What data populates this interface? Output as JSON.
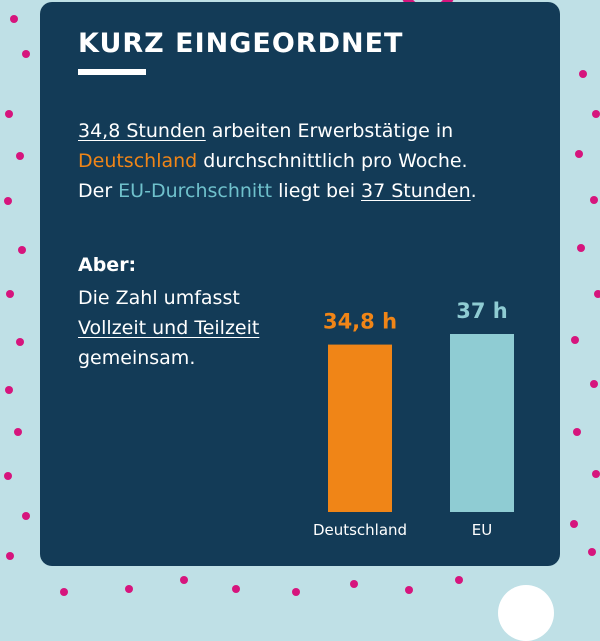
{
  "card": {
    "title": "KURZ EINGEORDNET",
    "intro": {
      "l1_a": "34,8 Stunden",
      "l1_b": " arbeiten Erwerbstätige in",
      "l2_a": "Deutschland",
      "l2_b": " durchschnittlich pro Woche.",
      "l3_a": "Der ",
      "l3_b": "EU-Durchschnitt",
      "l3_c": " liegt bei ",
      "l3_d": "37 Stunden",
      "l3_e": "."
    },
    "aber": {
      "heading": "Aber:",
      "l1": "Die Zahl umfasst",
      "l2": "Vollzeit und Teilzeit",
      "l3": "gemeinsam."
    }
  },
  "chart_data": {
    "type": "bar",
    "categories": [
      "Deutschland",
      "EU"
    ],
    "values": [
      34.8,
      37
    ],
    "value_labels": [
      "34,8 h",
      "37 h"
    ],
    "unit": "h",
    "colors": [
      "#f08517",
      "#8fccd3"
    ],
    "grid": false,
    "legend": "none"
  },
  "colors": {
    "background": "#bfe0e6",
    "card": "#133b57",
    "accent_orange": "#f08517",
    "accent_teal": "#6fc1cc",
    "dots": "#d6157d"
  }
}
